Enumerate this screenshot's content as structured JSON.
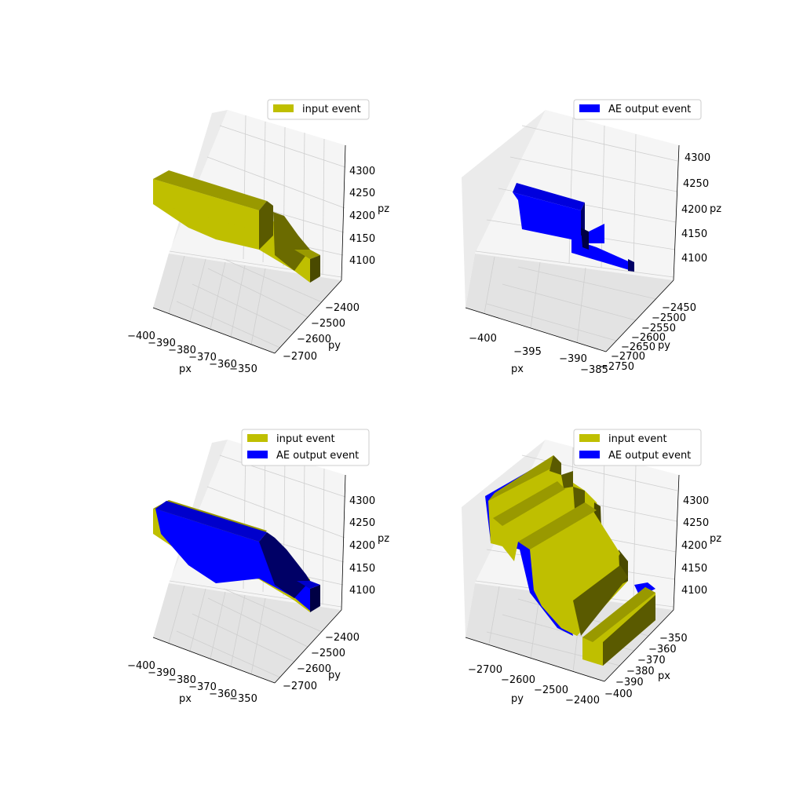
{
  "colors": {
    "input": "#bfbf00",
    "output": "#0000ff"
  },
  "chart_data": [
    {
      "type": "3d-voxel",
      "panel": "top-left",
      "legend": [
        {
          "label": "input event",
          "color": "#bfbf00"
        }
      ],
      "axes": {
        "x": {
          "label": "px",
          "ticks": [
            "−400",
            "−390",
            "−380",
            "−370",
            "−360",
            "−350"
          ]
        },
        "y": {
          "label": "py",
          "ticks": [
            "−2400",
            "−2500",
            "−2600",
            "−2700"
          ]
        },
        "z": {
          "label": "pz",
          "ticks": [
            "4300",
            "4250",
            "4200",
            "4150",
            "4100"
          ]
        }
      }
    },
    {
      "type": "3d-voxel",
      "panel": "top-right",
      "legend": [
        {
          "label": "AE output event",
          "color": "#0000ff"
        }
      ],
      "axes": {
        "x": {
          "label": "px",
          "ticks": [
            "−400",
            "−395",
            "−390",
            "−385"
          ]
        },
        "y": {
          "label": "py",
          "ticks": [
            "−2450",
            "−2500",
            "−2550",
            "−2600",
            "−2650",
            "−2700",
            "−2750"
          ]
        },
        "z": {
          "label": "pz",
          "ticks": [
            "4300",
            "4250",
            "4200",
            "4150",
            "4100"
          ]
        }
      }
    },
    {
      "type": "3d-voxel",
      "panel": "bottom-left",
      "legend": [
        {
          "label": "input event",
          "color": "#bfbf00"
        },
        {
          "label": "AE output event",
          "color": "#0000ff"
        }
      ],
      "axes": {
        "x": {
          "label": "px",
          "ticks": [
            "−400",
            "−390",
            "−380",
            "−370",
            "−360",
            "−350"
          ]
        },
        "y": {
          "label": "py",
          "ticks": [
            "−2400",
            "−2500",
            "−2600",
            "−2700"
          ]
        },
        "z": {
          "label": "pz",
          "ticks": [
            "4300",
            "4250",
            "4200",
            "4150",
            "4100"
          ]
        }
      }
    },
    {
      "type": "3d-voxel",
      "panel": "bottom-right",
      "legend": [
        {
          "label": "input event",
          "color": "#bfbf00"
        },
        {
          "label": "AE output event",
          "color": "#0000ff"
        }
      ],
      "axes": {
        "x": {
          "label": "py",
          "ticks": [
            "−2700",
            "−2600",
            "−2500",
            "−2400"
          ]
        },
        "y": {
          "label": "px",
          "ticks": [
            "−350",
            "−360",
            "−370",
            "−380",
            "−390",
            "−400"
          ]
        },
        "z": {
          "label": "pz",
          "ticks": [
            "4300",
            "4250",
            "4200",
            "4150",
            "4100"
          ]
        }
      }
    }
  ]
}
